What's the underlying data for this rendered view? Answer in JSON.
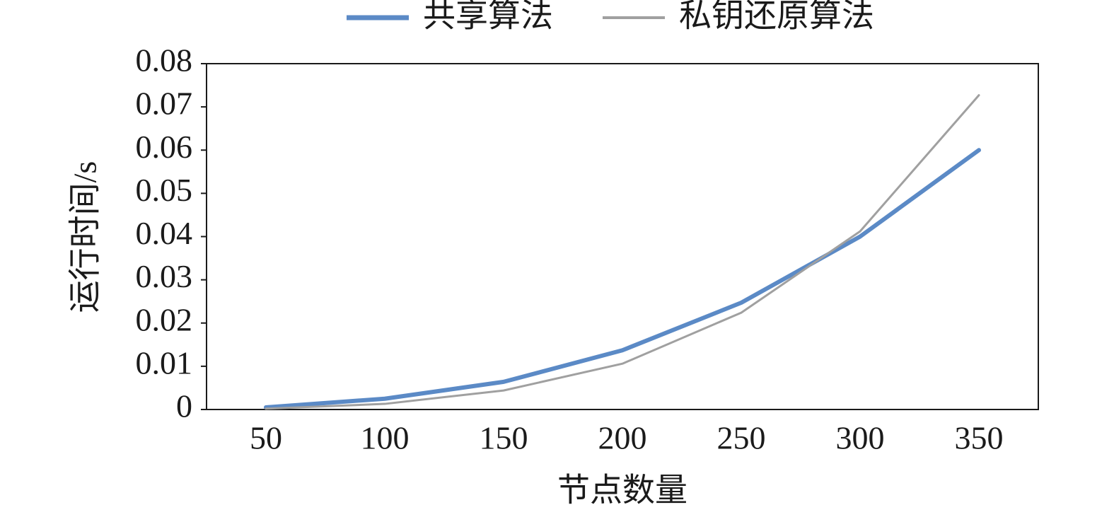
{
  "chart_data": {
    "type": "line",
    "xlabel": "节点数量",
    "ylabel": "运行时间/s",
    "categories": [
      "50",
      "100",
      "150",
      "200",
      "250",
      "300",
      "350"
    ],
    "series": [
      {
        "name": "共享算法",
        "color": "#5b8ac6",
        "width": 6,
        "values": [
          0.0005,
          0.0025,
          0.0064,
          0.0137,
          0.0247,
          0.04,
          0.06
        ]
      },
      {
        "name": "私钥还原算法",
        "color": "#a0a0a0",
        "width": 3,
        "values": [
          0.0002,
          0.0013,
          0.0044,
          0.0106,
          0.0224,
          0.0412,
          0.0727
        ]
      }
    ],
    "ylim": [
      0,
      0.08
    ],
    "yticks": [
      0,
      0.01,
      0.02,
      0.03,
      0.04,
      0.05,
      0.06,
      0.07,
      0.08
    ]
  }
}
